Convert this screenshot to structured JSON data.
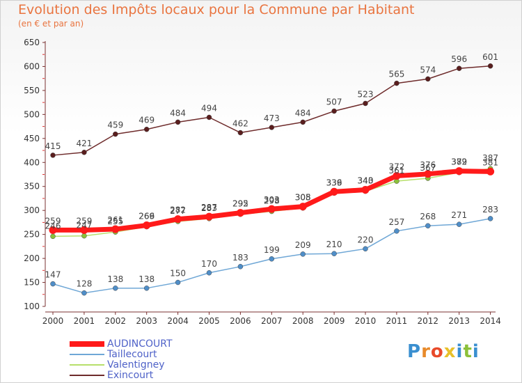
{
  "title": "Evolution des Impôts locaux pour la Commune par Habitant",
  "subtitle": "(en € et par an)",
  "logo": {
    "text": "Proxiti",
    "letters": [
      "P",
      "r",
      "o",
      "x",
      "i",
      "t",
      "i"
    ],
    "colors": [
      "#3a8fd0",
      "#e88a2a",
      "#e84a2a",
      "#e8c02a",
      "#3a8fd0",
      "#8cc03a",
      "#3a8fd0"
    ]
  },
  "chart_data": {
    "type": "line",
    "title": "Evolution des Impôts locaux pour la Commune par Habitant",
    "subtitle": "(en € et par an)",
    "x": [
      2000,
      2001,
      2002,
      2003,
      2004,
      2005,
      2006,
      2007,
      2008,
      2009,
      2010,
      2011,
      2012,
      2013,
      2014
    ],
    "ylim": [
      100,
      650
    ],
    "yticks": [
      100,
      150,
      200,
      250,
      300,
      350,
      400,
      450,
      500,
      550,
      600,
      650
    ],
    "grid": false,
    "legend_position": "bottom-left",
    "series": [
      {
        "name": "Exincourt",
        "color": "#6e2b2b",
        "values": [
          415,
          421,
          459,
          469,
          484,
          494,
          462,
          473,
          484,
          507,
          523,
          565,
          574,
          596,
          601
        ]
      },
      {
        "name": "Taillecourt",
        "color": "#6fa7d6",
        "values": [
          147,
          128,
          138,
          138,
          150,
          170,
          183,
          199,
          209,
          210,
          220,
          257,
          268,
          271,
          283
        ]
      },
      {
        "name": "Valentigney",
        "color": "#b6df6a",
        "values": [
          246,
          247,
          255,
          266,
          277,
          283,
          292,
          298,
          305,
          336,
          340,
          361,
          367,
          379,
          387
        ]
      },
      {
        "name": "AUDINCOURT",
        "color": "#ff1a1a",
        "values": [
          259,
          259,
          261,
          269,
          282,
          287,
          295,
          303,
          308,
          339,
          343,
          372,
          376,
          382,
          381
        ]
      }
    ]
  }
}
